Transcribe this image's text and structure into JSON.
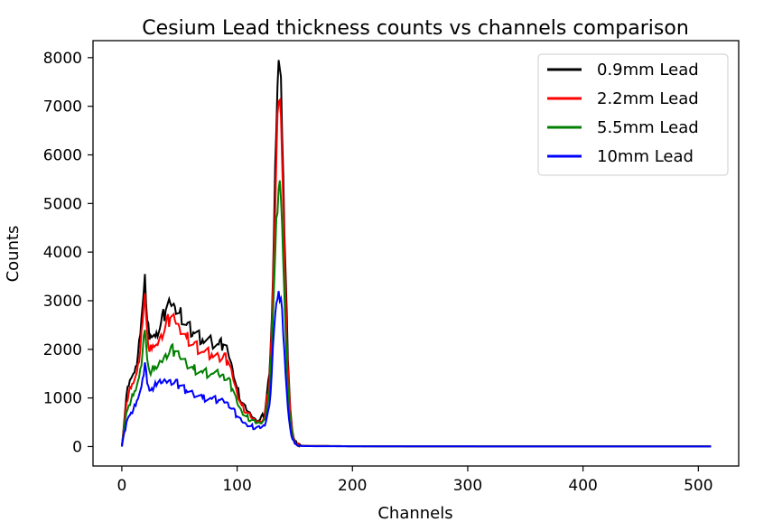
{
  "chart_data": {
    "type": "line",
    "title": "Cesium Lead thickness counts vs channels comparison",
    "xlabel": "Channels",
    "ylabel": "Counts",
    "xlim": [
      -25,
      535
    ],
    "ylim": [
      -400,
      8350
    ],
    "xticks": [
      0,
      100,
      200,
      300,
      400,
      500
    ],
    "yticks": [
      0,
      1000,
      2000,
      3000,
      4000,
      5000,
      6000,
      7000,
      8000
    ],
    "grid": false,
    "legend_position": "top-right",
    "x": [
      0,
      4,
      6,
      8,
      10,
      12,
      14,
      16,
      18,
      20,
      22,
      24,
      26,
      28,
      30,
      34,
      38,
      42,
      46,
      50,
      56,
      62,
      70,
      78,
      84,
      88,
      92,
      96,
      100,
      104,
      108,
      112,
      116,
      120,
      124,
      128,
      130,
      132,
      134,
      136,
      138,
      140,
      142,
      144,
      146,
      148,
      150,
      152,
      156,
      160,
      180,
      200,
      250,
      300,
      350,
      400,
      450,
      500,
      511
    ],
    "series": [
      {
        "name": "0.9mm Lead",
        "color": "#000000",
        "values": [
          0,
          1050,
          1250,
          1400,
          1500,
          1650,
          1900,
          2300,
          2900,
          3550,
          2600,
          2200,
          2250,
          2300,
          2350,
          2550,
          2800,
          2950,
          2880,
          2750,
          2500,
          2350,
          2200,
          2150,
          2100,
          2100,
          1950,
          1600,
          1200,
          900,
          750,
          650,
          560,
          560,
          680,
          1500,
          2600,
          4500,
          6500,
          7950,
          7600,
          5600,
          3600,
          1800,
          800,
          300,
          120,
          50,
          20,
          15,
          12,
          8,
          5,
          5,
          3,
          3,
          3,
          3,
          3
        ]
      },
      {
        "name": "2.2mm Lead",
        "color": "#ff0000",
        "values": [
          0,
          900,
          1100,
          1200,
          1300,
          1450,
          1700,
          2000,
          2550,
          3150,
          2350,
          1950,
          2000,
          2050,
          2100,
          2300,
          2500,
          2650,
          2600,
          2450,
          2250,
          2100,
          1950,
          1900,
          1860,
          1860,
          1750,
          1450,
          1100,
          850,
          700,
          600,
          520,
          520,
          620,
          1350,
          2400,
          4100,
          5900,
          7100,
          6800,
          5000,
          3200,
          1600,
          700,
          260,
          100,
          40,
          18,
          12,
          10,
          7,
          5,
          4,
          3,
          3,
          3,
          3,
          3
        ]
      },
      {
        "name": "5.5mm Lead",
        "color": "#008000",
        "values": [
          0,
          700,
          850,
          950,
          1050,
          1150,
          1350,
          1600,
          1950,
          2400,
          1800,
          1550,
          1560,
          1580,
          1600,
          1750,
          1900,
          2000,
          1960,
          1850,
          1700,
          1600,
          1520,
          1500,
          1480,
          1480,
          1400,
          1180,
          900,
          720,
          620,
          540,
          480,
          480,
          560,
          1150,
          2000,
          3300,
          4700,
          5300,
          5100,
          3800,
          2400,
          1200,
          550,
          200,
          80,
          30,
          15,
          10,
          8,
          6,
          4,
          3,
          3,
          3,
          3,
          3,
          3
        ]
      },
      {
        "name": "10mm Lead",
        "color": "#0000ff",
        "values": [
          0,
          500,
          620,
          700,
          760,
          840,
          980,
          1150,
          1400,
          1730,
          1300,
          1150,
          1200,
          1230,
          1250,
          1300,
          1350,
          1370,
          1330,
          1250,
          1150,
          1080,
          1000,
          980,
          960,
          950,
          900,
          780,
          620,
          520,
          460,
          420,
          380,
          380,
          430,
          850,
          1500,
          2400,
          2950,
          3200,
          3050,
          2300,
          1500,
          800,
          380,
          150,
          60,
          25,
          12,
          8,
          6,
          5,
          3,
          3,
          2,
          2,
          2,
          2,
          2
        ]
      }
    ]
  }
}
